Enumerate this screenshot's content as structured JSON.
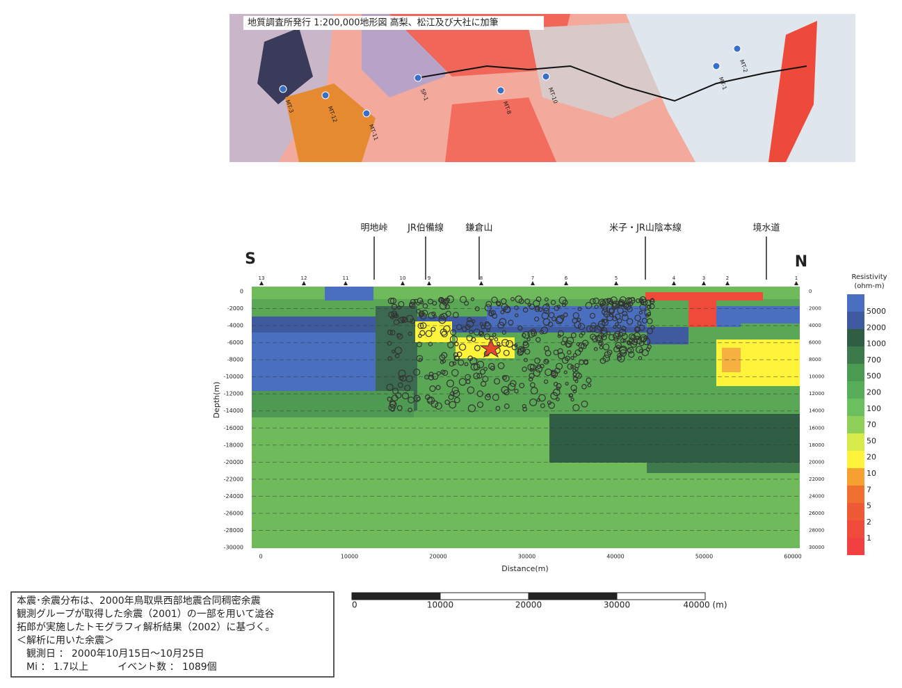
{
  "map": {
    "caption": "地質調査所発行 1:200,000地形図 高梨、松江及び大社に加筆",
    "stations": [
      "MT-3",
      "MT-12",
      "MT-11",
      "SP-1",
      "MT-8",
      "MT-10",
      "MT-2",
      "MT-1"
    ]
  },
  "section": {
    "compass_left": "S",
    "compass_right": "N",
    "landmarks": [
      "明地峠",
      "JR伯備線",
      "鎌倉山",
      "米子・JR山陰本線",
      "境水道"
    ],
    "stations": [
      "13",
      "12",
      "11",
      "10",
      "9",
      "8",
      "7",
      "6",
      "5",
      "4",
      "3",
      "2",
      "1"
    ],
    "y_axis_title": "Depth(m)",
    "x_axis_title": "Distance(m)",
    "left_ticks": [
      0,
      -2000,
      -4000,
      -6000,
      -8000,
      -10000,
      -12000,
      -14000,
      -16000,
      -18000,
      -20000,
      -22000,
      -24000,
      -26000,
      -28000,
      -30000
    ],
    "right_ticks": [
      0,
      2000,
      4000,
      6000,
      8000,
      10000,
      12000,
      14000,
      16000,
      18000,
      20000,
      22000,
      24000,
      26000,
      28000,
      30000
    ],
    "x_ticks": [
      0,
      10000,
      20000,
      30000,
      40000,
      50000,
      60000
    ]
  },
  "legend": {
    "title_line1": "Resistivity",
    "title_line2": "(ohm-m)",
    "labels": [
      5000,
      2000,
      1000,
      700,
      500,
      200,
      100,
      70,
      50,
      20,
      10,
      7,
      5,
      2,
      1
    ]
  },
  "note": {
    "lines": [
      "本震･余震分布は、2000年鳥取県西部地震合同稠密余震",
      "観測グループが取得した余震（2001）の一部を用いて澁谷",
      "拓郎が実施したトモグラフィ解析結果（2002）に基づく。",
      "＜解析に用いた余震＞",
      "　観測日 ： 2000年10月15日～10月25日",
      "　Mi ： 1.7以上　　　イベント数 ： 1089個"
    ]
  },
  "scale_bar": {
    "labels": [
      "0",
      "10000",
      "20000",
      "30000",
      "40000 (m)"
    ]
  }
}
